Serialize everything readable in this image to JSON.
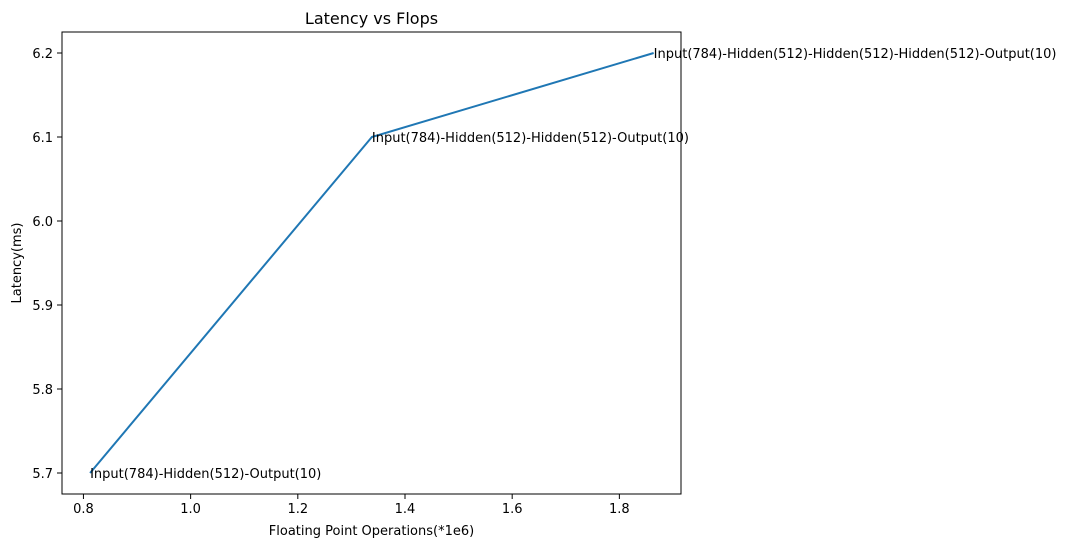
{
  "chart_data": {
    "type": "line",
    "title": "Latency vs Flops",
    "xlabel": "Floating Point Operations(*1e6)",
    "ylabel": "Latency(ms)",
    "xlim": [
      0.76,
      1.915
    ],
    "ylim": [
      5.675,
      6.225
    ],
    "xticks": [
      0.8,
      1.0,
      1.2,
      1.4,
      1.6,
      1.8
    ],
    "xtick_labels": [
      "0.8",
      "1.0",
      "1.2",
      "1.4",
      "1.6",
      "1.8"
    ],
    "yticks": [
      5.7,
      5.8,
      5.9,
      6.0,
      6.1,
      6.2
    ],
    "ytick_labels": [
      "5.7",
      "5.8",
      "5.9",
      "6.0",
      "6.1",
      "6.2"
    ],
    "grid": false,
    "series": [
      {
        "color": "#1f77b4",
        "x": [
          0.8124,
          1.3382,
          1.864
        ],
        "y": [
          5.7,
          6.1,
          6.2
        ]
      }
    ],
    "annotations": [
      {
        "x": 0.8124,
        "y": 5.7,
        "text": "Input(784)-Hidden(512)-Output(10)"
      },
      {
        "x": 1.3382,
        "y": 6.1,
        "text": "Input(784)-Hidden(512)-Hidden(512)-Output(10)"
      },
      {
        "x": 1.864,
        "y": 6.2,
        "text": "Input(784)-Hidden(512)-Hidden(512)-Hidden(512)-Output(10)"
      }
    ]
  }
}
